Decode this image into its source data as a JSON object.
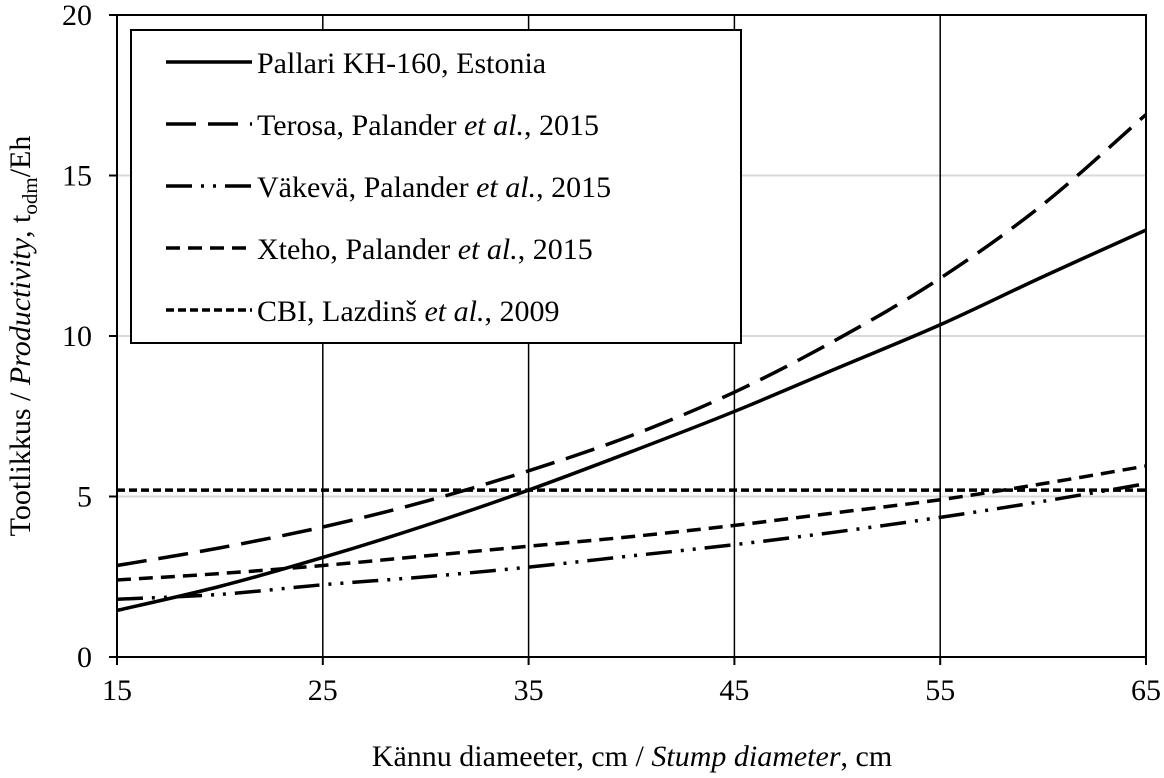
{
  "chart_data": {
    "type": "line",
    "xlabel": {
      "part1": "Kännu diameeter, cm / ",
      "part2_italic": "Stump diameter",
      "part3": ", cm"
    },
    "ylabel": {
      "part1": "Tootlikkus / ",
      "part2_italic": "Productivity",
      "part3": ", t",
      "sub": "odm",
      "part4": "/Eh"
    },
    "xlim": [
      15,
      65
    ],
    "ylim": [
      0,
      20
    ],
    "x_ticks": [
      "15",
      "25",
      "35",
      "45",
      "55",
      "65"
    ],
    "y_ticks": [
      "0",
      "5",
      "10",
      "15",
      "20"
    ],
    "grid": {
      "vertical": "major, black",
      "horizontal": "major, light gray"
    },
    "legend_position": "top-left",
    "x": [
      15,
      20,
      25,
      30,
      35,
      40,
      45,
      50,
      55,
      60,
      65
    ],
    "series": [
      {
        "name_parts": {
          "pre": "Pallari KH-160, Estonia",
          "italic": "",
          "post": ""
        },
        "style": "solid",
        "values": [
          1.45,
          2.2,
          3.1,
          4.1,
          5.2,
          6.4,
          7.65,
          9.0,
          10.35,
          11.85,
          13.3
        ]
      },
      {
        "name_parts": {
          "pre": "Terosa, Palander ",
          "italic": "et al.",
          "post": ", 2015"
        },
        "style": "long-dash",
        "values": [
          2.85,
          3.4,
          4.05,
          4.85,
          5.8,
          6.9,
          8.25,
          9.9,
          11.8,
          14.1,
          16.9
        ]
      },
      {
        "name_parts": {
          "pre": "Väkevä, Palander ",
          "italic": "et al.",
          "post": ", 2015"
        },
        "style": "dash-dot-dot",
        "values": [
          1.8,
          1.95,
          2.25,
          2.5,
          2.8,
          3.15,
          3.5,
          3.9,
          4.35,
          4.85,
          5.4
        ]
      },
      {
        "name_parts": {
          "pre": "Xteho, Palander ",
          "italic": "et al.",
          "post": ", 2015"
        },
        "style": "dash",
        "values": [
          2.4,
          2.6,
          2.85,
          3.15,
          3.45,
          3.75,
          4.1,
          4.5,
          4.9,
          5.4,
          5.95
        ]
      },
      {
        "name_parts": {
          "pre": "CBI, Lazdinš ",
          "italic": "et al.",
          "post": ", 2009"
        },
        "style": "short-dash",
        "values": [
          5.2,
          5.2,
          5.2,
          5.2,
          5.2,
          5.2,
          5.2,
          5.2,
          5.2,
          5.2,
          5.2
        ]
      }
    ],
    "colors": {
      "line": "#000000",
      "hgrid": "#d9d9d9",
      "vgrid": "#000000"
    }
  }
}
